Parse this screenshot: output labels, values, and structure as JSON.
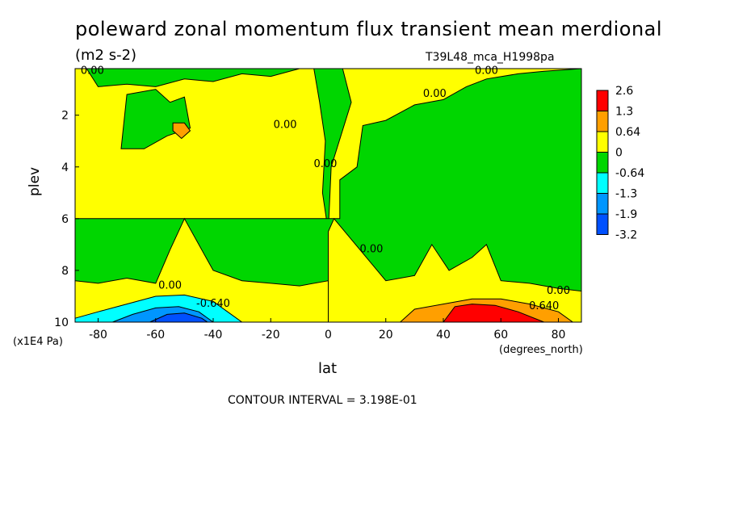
{
  "chart_data": {
    "type": "heatmap",
    "title": "poleward zonal momentum flux transient mean merdional",
    "units": "(m2 s-2)",
    "run_id": "T39L48_mca_H1998pa",
    "xlabel": "lat",
    "ylabel": "plev",
    "x_units": "(degrees_north)",
    "y_units": "(x1E4 Pa)",
    "xlim": [
      -88,
      88
    ],
    "ylim": [
      10,
      0.2
    ],
    "x_ticks": [
      -80,
      -60,
      -40,
      -20,
      0,
      20,
      40,
      60,
      80
    ],
    "x_tick_labels": [
      "-80",
      "-60",
      "-40",
      "-20",
      "0",
      "20",
      "40",
      "60",
      "80"
    ],
    "y_ticks": [
      2,
      4,
      6,
      8,
      10
    ],
    "y_tick_labels": [
      "2",
      "4",
      "6",
      "8",
      "10"
    ],
    "contour_interval_text": "CONTOUR INTERVAL = 3.198E-01",
    "colorbar": {
      "labels": [
        "2.6",
        "1.3",
        "0.64",
        "0",
        "-0.64",
        "-1.3",
        "-1.9",
        "-3.2"
      ],
      "colors": [
        "#ff0000",
        "#ff9f00",
        "#ffff00",
        "#00d600",
        "#00ffff",
        "#0096ff",
        "#0050ff"
      ]
    },
    "colors": {
      "positive_low": "#ffff00",
      "negative_low": "#00d600",
      "positive_mid": "#ff9f00",
      "positive_high": "#ff0000",
      "negative_mid": "#00ffff",
      "negative_high": "#0096ff",
      "negative_max": "#0050ff"
    },
    "regions": [
      {
        "value_class": "positive_low",
        "points": [
          [
            -88,
            0.2
          ],
          [
            88,
            0.2
          ],
          [
            88,
            10
          ],
          [
            -88,
            10
          ]
        ]
      },
      {
        "value_class": "negative_low",
        "points": [
          [
            -88,
            0.2
          ],
          [
            -84,
            0.2
          ],
          [
            -80,
            0.9
          ],
          [
            -70,
            0.8
          ],
          [
            -60,
            0.9
          ],
          [
            -50,
            0.6
          ],
          [
            -40,
            0.7
          ],
          [
            -30,
            0.4
          ],
          [
            -20,
            0.5
          ],
          [
            -10,
            0.2
          ],
          [
            -88,
            0.2
          ]
        ]
      },
      {
        "value_class": "negative_low",
        "points": [
          [
            -5,
            0.2
          ],
          [
            5,
            0.2
          ],
          [
            8,
            1.5
          ],
          [
            1,
            4
          ],
          [
            0,
            6.5
          ],
          [
            -2,
            5
          ],
          [
            -1,
            3
          ],
          [
            -3,
            1.5
          ],
          [
            -5,
            0.2
          ]
        ]
      },
      {
        "value_class": "negative_low",
        "points": [
          [
            -70,
            1.2
          ],
          [
            -60,
            1.0
          ],
          [
            -55,
            1.5
          ],
          [
            -50,
            1.3
          ],
          [
            -48,
            2.5
          ],
          [
            -56,
            2.8
          ],
          [
            -64,
            3.3
          ],
          [
            -72,
            3.3
          ],
          [
            -70,
            1.2
          ]
        ]
      },
      {
        "value_class": "negative_low",
        "points": [
          [
            -88,
            8.4
          ],
          [
            -80,
            8.5
          ],
          [
            -70,
            8.3
          ],
          [
            -60,
            8.5
          ],
          [
            -55,
            7.2
          ],
          [
            -50,
            6.0
          ],
          [
            -45,
            7.0
          ],
          [
            -40,
            8.0
          ],
          [
            -30,
            8.4
          ],
          [
            -20,
            8.5
          ],
          [
            -10,
            8.6
          ],
          [
            0,
            8.4
          ],
          [
            0,
            6.5
          ],
          [
            2,
            6.0
          ],
          [
            20,
            8.4
          ],
          [
            30,
            8.2
          ],
          [
            36,
            7.0
          ],
          [
            42,
            8.0
          ],
          [
            50,
            7.5
          ],
          [
            55,
            7.0
          ],
          [
            60,
            8.4
          ],
          [
            70,
            8.5
          ],
          [
            80,
            8.7
          ],
          [
            88,
            8.8
          ],
          [
            88,
            0.2
          ],
          [
            75,
            0.3
          ],
          [
            66,
            0.4
          ],
          [
            55,
            0.6
          ],
          [
            48,
            0.9
          ],
          [
            40,
            1.4
          ],
          [
            30,
            1.6
          ],
          [
            20,
            2.2
          ],
          [
            12,
            2.4
          ],
          [
            10,
            4.0
          ],
          [
            4,
            4.5
          ],
          [
            4,
            6.0
          ],
          [
            -88,
            6.0
          ]
        ]
      },
      {
        "value_class": "positive_mid",
        "points": [
          [
            -54,
            2.3
          ],
          [
            -50,
            2.3
          ],
          [
            -48,
            2.6
          ],
          [
            -51,
            2.9
          ],
          [
            -54,
            2.6
          ]
        ]
      },
      {
        "value_class": "negative_mid",
        "points": [
          [
            -88,
            9.85
          ],
          [
            -80,
            9.6
          ],
          [
            -70,
            9.3
          ],
          [
            -60,
            9.0
          ],
          [
            -50,
            8.95
          ],
          [
            -40,
            9.2
          ],
          [
            -35,
            9.6
          ],
          [
            -30,
            10
          ],
          [
            -88,
            10
          ]
        ]
      },
      {
        "value_class": "negative_high",
        "points": [
          [
            -75,
            10
          ],
          [
            -68,
            9.7
          ],
          [
            -60,
            9.45
          ],
          [
            -52,
            9.4
          ],
          [
            -45,
            9.6
          ],
          [
            -40,
            10
          ]
        ]
      },
      {
        "value_class": "negative_max",
        "points": [
          [
            -62,
            10
          ],
          [
            -56,
            9.7
          ],
          [
            -50,
            9.65
          ],
          [
            -44,
            9.85
          ],
          [
            -42,
            10
          ]
        ]
      },
      {
        "value_class": "positive_mid",
        "points": [
          [
            25,
            10
          ],
          [
            30,
            9.5
          ],
          [
            40,
            9.3
          ],
          [
            50,
            9.1
          ],
          [
            60,
            9.1
          ],
          [
            70,
            9.3
          ],
          [
            80,
            9.6
          ],
          [
            85,
            10
          ]
        ]
      },
      {
        "value_class": "positive_high",
        "points": [
          [
            40,
            10
          ],
          [
            44,
            9.4
          ],
          [
            50,
            9.3
          ],
          [
            58,
            9.35
          ],
          [
            66,
            9.6
          ],
          [
            75,
            10
          ]
        ]
      }
    ],
    "contour_labels": [
      {
        "text": "0.00",
        "x": -82,
        "y": 0.4
      },
      {
        "text": "0.00",
        "x": -15,
        "y": 2.5
      },
      {
        "text": "0.00",
        "x": -1,
        "y": 4.0
      },
      {
        "text": "0.00",
        "x": 37,
        "y": 1.3
      },
      {
        "text": "0.00",
        "x": 55,
        "y": 0.4
      },
      {
        "text": "0.00",
        "x": 15,
        "y": 7.3
      },
      {
        "text": "0.00",
        "x": -55,
        "y": 8.7
      },
      {
        "text": "-0.640",
        "x": -40,
        "y": 9.4
      },
      {
        "text": "0.00",
        "x": 80,
        "y": 8.9
      },
      {
        "text": "0.640",
        "x": 75,
        "y": 9.5
      }
    ]
  }
}
